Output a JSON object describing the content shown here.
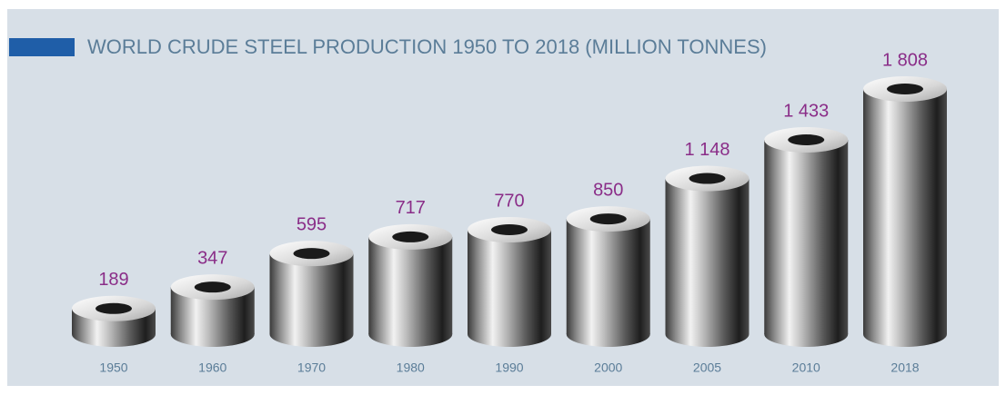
{
  "chart_data": {
    "type": "cylinder-bar",
    "title": "WORLD CRUDE STEEL PRODUCTION 1950 TO 2018 (MILLION TONNES)",
    "categories": [
      "1950",
      "1960",
      "1970",
      "1980",
      "1990",
      "2000",
      "2005",
      "2010",
      "2018"
    ],
    "values": [
      189,
      347,
      595,
      717,
      770,
      850,
      1148,
      1433,
      1808
    ],
    "value_labels": [
      "189",
      "347",
      "595",
      "717",
      "770",
      "850",
      "1 148",
      "1 433",
      "1 808"
    ],
    "color": "#8a2d88"
  }
}
